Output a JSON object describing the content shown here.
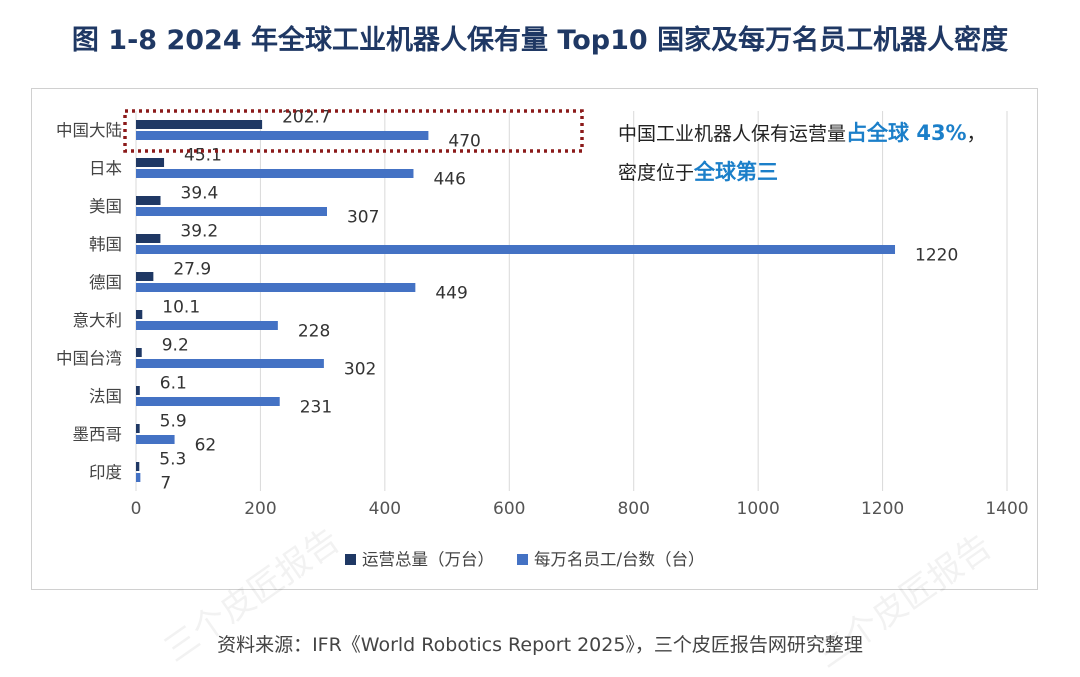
{
  "title": "图 1-8 2024 年全球工业机器人保有量 Top10 国家及每万名员工机器人密度",
  "callout": {
    "line1_prefix": "中国工业机器人保有运营量",
    "line1_highlight": "占全球 43%",
    "line1_suffix": "，",
    "line2_prefix": "密度位于",
    "line2_highlight": "全球第三"
  },
  "source": "资料来源：IFR《World Robotics Report 2025》，三个皮匠报告网研究整理",
  "watermark": "三个皮匠报告",
  "colors": {
    "series1": "#1f3864",
    "series2": "#4472c4",
    "highlight_box": "#8b1a1a",
    "callout_highlight": "#1b7fc9"
  },
  "chart_data": {
    "type": "bar",
    "orientation": "horizontal",
    "categories": [
      "中国大陆",
      "日本",
      "美国",
      "韩国",
      "德国",
      "意大利",
      "中国台湾",
      "法国",
      "墨西哥",
      "印度"
    ],
    "series": [
      {
        "name": "运营总量（万台）",
        "values": [
          202.7,
          45.1,
          39.4,
          39.2,
          27.9,
          10.1,
          9.2,
          6.1,
          5.9,
          5.3
        ]
      },
      {
        "name": "每万名员工/台数（台）",
        "values": [
          470,
          446,
          307,
          1220,
          449,
          228,
          302,
          231,
          62,
          7
        ]
      }
    ],
    "xlim": [
      0,
      1400
    ],
    "xticks": [
      0,
      200,
      400,
      600,
      800,
      1000,
      1200,
      1400
    ],
    "grid": true,
    "legend_position": "bottom",
    "highlighted_category": "中国大陆"
  }
}
